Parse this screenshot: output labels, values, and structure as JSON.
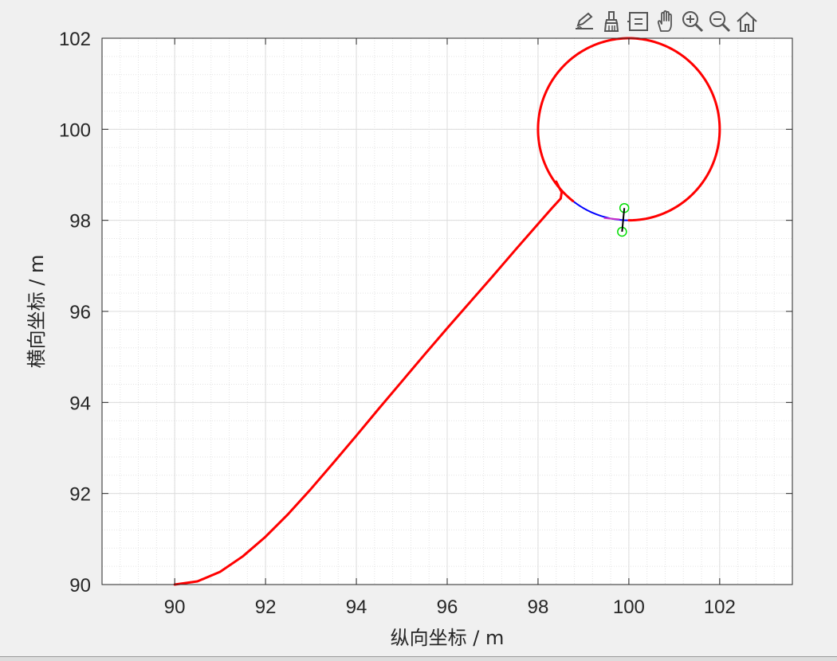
{
  "toolbar": {
    "buttons": [
      {
        "name": "edit-plot-icon"
      },
      {
        "name": "brush-icon"
      },
      {
        "name": "data-tips-icon"
      },
      {
        "name": "pan-hand-icon"
      },
      {
        "name": "zoom-in-icon"
      },
      {
        "name": "zoom-out-icon"
      },
      {
        "name": "home-icon"
      }
    ]
  },
  "chart_data": {
    "type": "line",
    "title": "",
    "xlabel": "纵向坐标 / m",
    "ylabel": "横向坐标 / m",
    "xlim": [
      88.4,
      103.6
    ],
    "ylim": [
      90,
      102
    ],
    "xticks": [
      90,
      92,
      94,
      96,
      98,
      100,
      102
    ],
    "yticks": [
      90,
      92,
      94,
      96,
      98,
      100,
      102
    ],
    "grid": true,
    "minor_grid": true,
    "series": [
      {
        "color": "#0000ff",
        "shape": "circle",
        "center": [
          100,
          100
        ],
        "radius": 2,
        "width": 2
      },
      {
        "color": "#ff0000",
        "x": [
          90.0,
          90.5,
          91.0,
          91.5,
          92.0,
          92.5,
          93.0,
          93.5,
          94.0,
          94.5,
          95.0,
          95.5,
          96.0,
          96.5,
          97.0,
          97.5,
          98.0,
          98.3,
          98.5,
          98.52,
          98.45,
          98.4
        ],
        "y": [
          90.0,
          90.07,
          90.28,
          90.62,
          91.05,
          91.55,
          92.1,
          92.68,
          93.27,
          93.87,
          94.46,
          95.05,
          95.63,
          96.2,
          96.77,
          97.35,
          97.92,
          98.26,
          98.48,
          98.62,
          98.75,
          98.85
        ],
        "width": 3
      },
      {
        "color": "#ff0000",
        "shape": "circle",
        "center": [
          100,
          100
        ],
        "radius": 2,
        "start_angle_deg": -90,
        "sweep_deg": 322,
        "width": 3
      }
    ],
    "markers": [
      {
        "type": "circle",
        "color": "#00dd00",
        "x": 99.9,
        "y": 98.27
      },
      {
        "type": "circle",
        "color": "#00dd00",
        "x": 99.85,
        "y": 97.75
      },
      {
        "type": "segment",
        "color": "#000000",
        "x": [
          99.9,
          99.85
        ],
        "y": [
          98.27,
          97.75
        ]
      },
      {
        "type": "segment",
        "color": "#cc33cc",
        "x": [
          99.45,
          99.8
        ],
        "y": [
          98.05,
          98.02
        ]
      }
    ]
  }
}
